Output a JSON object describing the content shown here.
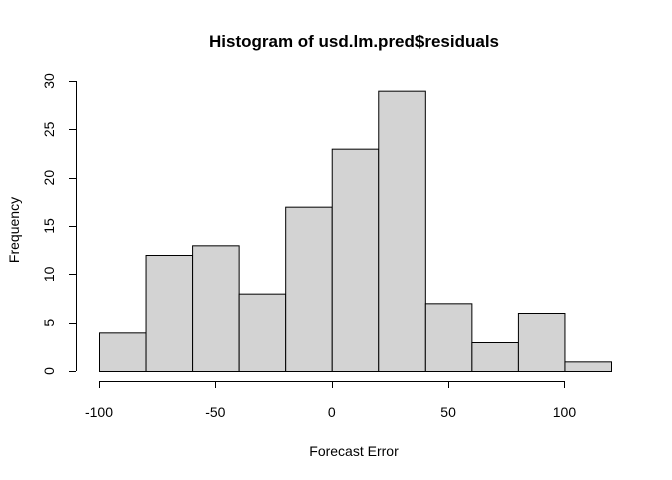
{
  "chart_data": {
    "type": "bar",
    "title": "Histogram of usd.lm.pred$residuals",
    "xlabel": "Forecast Error",
    "ylabel": "Frequency",
    "bin_edges": [
      -100,
      -80,
      -60,
      -40,
      -20,
      0,
      20,
      40,
      60,
      80,
      100,
      120
    ],
    "values": [
      4,
      12,
      13,
      8,
      17,
      23,
      29,
      7,
      3,
      6,
      1
    ],
    "xlim": [
      -100,
      120
    ],
    "ylim": [
      0,
      30
    ],
    "x_ticks": [
      -100,
      -50,
      0,
      50,
      100
    ],
    "x_tick_labels": [
      "-100",
      "-50",
      "0",
      "50",
      "100"
    ],
    "y_ticks": [
      0,
      5,
      10,
      15,
      20,
      25,
      30
    ],
    "y_tick_labels": [
      "0",
      "5",
      "10",
      "15",
      "20",
      "25",
      "30"
    ],
    "bar_color": "#d3d3d3",
    "grid": false,
    "legend": "none"
  }
}
